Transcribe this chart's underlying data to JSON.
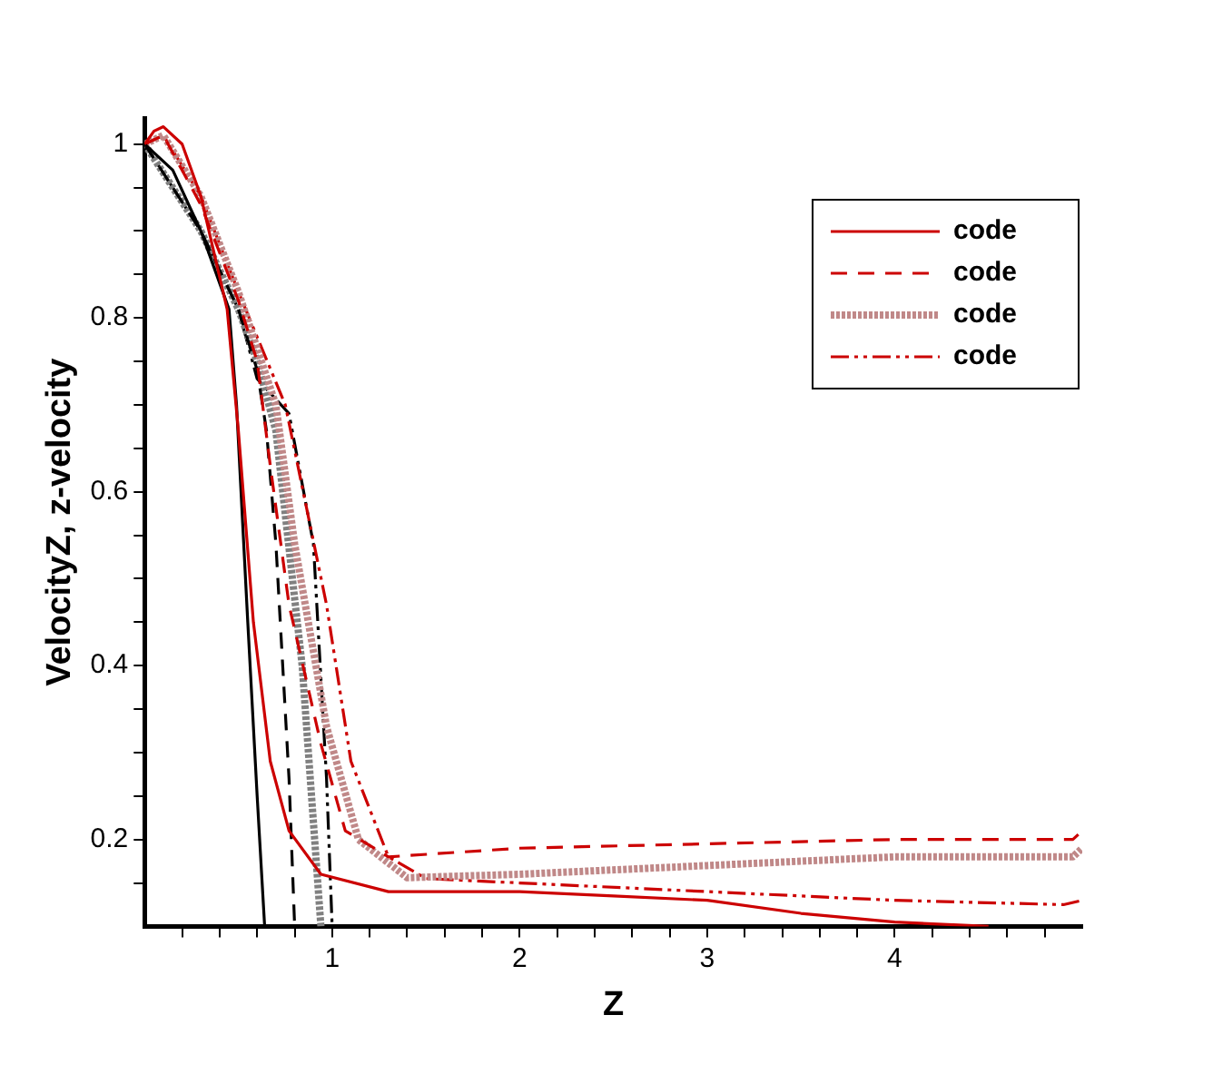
{
  "chart_data": {
    "type": "line",
    "xlabel": "Z",
    "ylabel": "VelocityZ, z-velocity",
    "xlim": [
      0,
      5
    ],
    "ylim": [
      0.1,
      1.03
    ],
    "xticks": [
      {
        "value": 0.2,
        "label": null
      },
      {
        "value": 0.4,
        "label": null
      },
      {
        "value": 0.6,
        "label": null
      },
      {
        "value": 0.8,
        "label": null
      },
      1,
      {
        "value": 1.2,
        "label": null
      },
      {
        "value": 1.4,
        "label": null
      },
      {
        "value": 1.6,
        "label": null
      },
      {
        "value": 1.8,
        "label": null
      },
      2,
      {
        "value": 2.2,
        "label": null
      },
      {
        "value": 2.4,
        "label": null
      },
      {
        "value": 2.6,
        "label": null
      },
      {
        "value": 2.8,
        "label": null
      },
      3,
      {
        "value": 3.2,
        "label": null
      },
      {
        "value": 3.4,
        "label": null
      },
      {
        "value": 3.6,
        "label": null
      },
      {
        "value": 3.8,
        "label": null
      },
      4,
      {
        "value": 4.2,
        "label": null
      },
      {
        "value": 4.4,
        "label": null
      },
      {
        "value": 4.6,
        "label": null
      },
      {
        "value": 4.8,
        "label": null
      }
    ],
    "yticks": [
      {
        "value": 0.15,
        "label": null
      },
      0.2,
      {
        "value": 0.25,
        "label": null
      },
      {
        "value": 0.3,
        "label": null
      },
      {
        "value": 0.35,
        "label": null
      },
      0.4,
      {
        "value": 0.45,
        "label": null
      },
      {
        "value": 0.5,
        "label": null
      },
      {
        "value": 0.55,
        "label": null
      },
      0.6,
      {
        "value": 0.65,
        "label": null
      },
      {
        "value": 0.7,
        "label": null
      },
      {
        "value": 0.75,
        "label": null
      },
      0.8,
      {
        "value": 0.85,
        "label": null
      },
      {
        "value": 0.9,
        "label": null
      },
      {
        "value": 0.95,
        "label": null
      },
      1
    ],
    "grid": false,
    "legend": "top right",
    "marker": "none",
    "series": [
      {
        "name": "code",
        "color": "#cc0000",
        "line_style": "solid",
        "x": [
          0,
          0.05,
          0.1,
          0.2,
          0.3,
          0.44,
          0.5,
          0.58,
          0.67,
          0.77,
          0.94,
          1.3,
          2,
          2.5,
          3,
          3.5,
          4,
          4.5
        ],
        "values": [
          1,
          1.015,
          1.02,
          1.0,
          0.94,
          0.81,
          0.67,
          0.45,
          0.29,
          0.21,
          0.16,
          0.14,
          0.14,
          0.135,
          0.13,
          0.115,
          0.105,
          0.1
        ]
      },
      {
        "color": "#000000",
        "line_style": "solid",
        "x": [
          0,
          0.15,
          0.3,
          0.45,
          0.49,
          0.55,
          0.6,
          0.64
        ],
        "values": [
          1,
          0.97,
          0.9,
          0.81,
          0.7,
          0.45,
          0.25,
          0.1
        ]
      },
      {
        "name": "code",
        "color": "#cc0000",
        "line_style": "dashed",
        "x": [
          0,
          0.1,
          0.3,
          0.5,
          0.6,
          0.67,
          0.77,
          0.94,
          1.07,
          1.3,
          2,
          3,
          4,
          4.95,
          5
        ],
        "values": [
          1,
          1.01,
          0.93,
          0.82,
          0.75,
          0.63,
          0.47,
          0.31,
          0.21,
          0.18,
          0.19,
          0.195,
          0.2,
          0.2,
          0.21
        ]
      },
      {
        "name": "code",
        "color": "#c08888",
        "line_style": "dotted",
        "x": [
          0,
          0.1,
          0.3,
          0.5,
          0.7,
          0.8,
          0.97,
          1.14,
          1.4,
          2,
          3,
          4,
          4.95,
          5
        ],
        "values": [
          1,
          1.01,
          0.94,
          0.83,
          0.7,
          0.54,
          0.33,
          0.2,
          0.156,
          0.16,
          0.17,
          0.18,
          0.18,
          0.19
        ]
      },
      {
        "name": "code",
        "color": "#cc0000",
        "line_style": "dashdot",
        "x": [
          0,
          0.1,
          0.3,
          0.5,
          0.75,
          0.97,
          1.1,
          1.3,
          1.5,
          2,
          3,
          4,
          4.9,
          5
        ],
        "values": [
          1,
          1.01,
          0.94,
          0.83,
          0.7,
          0.47,
          0.29,
          0.18,
          0.155,
          0.15,
          0.14,
          0.13,
          0.125,
          0.13
        ]
      },
      {
        "color": "#000000",
        "line_style": "dashed",
        "x": [
          0,
          0.3,
          0.5,
          0.6,
          0.65,
          0.7,
          0.77,
          0.8
        ],
        "values": [
          1,
          0.9,
          0.81,
          0.74,
          0.67,
          0.54,
          0.27,
          0.1
        ]
      },
      {
        "color": "#808080",
        "line_style": "dotted",
        "x": [
          0,
          0.3,
          0.5,
          0.6,
          0.7,
          0.84,
          0.94
        ],
        "values": [
          1,
          0.9,
          0.81,
          0.75,
          0.67,
          0.4,
          0.1
        ]
      },
      {
        "color": "#000000",
        "line_style": "dashdot",
        "x": [
          0,
          0.3,
          0.5,
          0.6,
          0.77,
          0.9,
          0.97,
          1.0
        ],
        "values": [
          1,
          0.9,
          0.81,
          0.73,
          0.69,
          0.54,
          0.27,
          0.1
        ]
      }
    ]
  }
}
